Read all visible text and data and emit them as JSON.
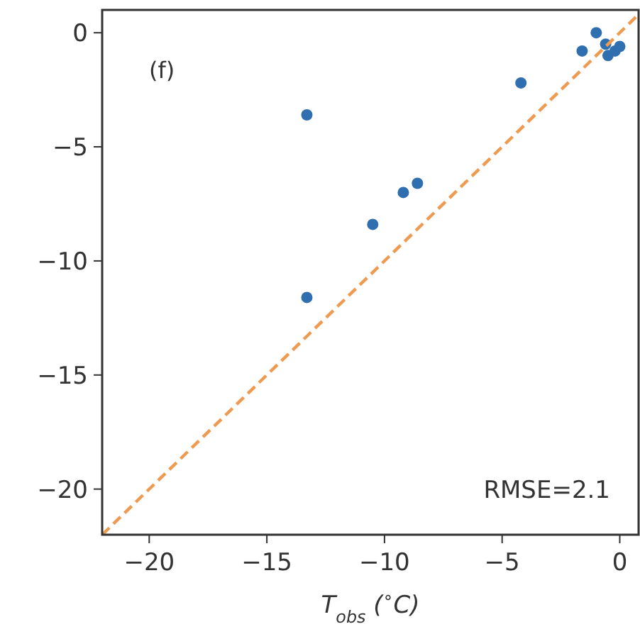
{
  "chart_data": {
    "type": "scatter",
    "xlabel": "T$_{obs}$ ($^{∘}$C)",
    "xlim": [
      -22,
      0.8
    ],
    "ylim": [
      -22,
      1
    ],
    "xticks": [
      {
        "value": -20,
        "label": "−20"
      },
      {
        "value": -15,
        "label": "−15"
      },
      {
        "value": -10,
        "label": "−10"
      },
      {
        "value": -5,
        "label": "−5"
      },
      0
    ],
    "yticks": [
      {
        "value": -20,
        "label": "−20"
      },
      {
        "value": -15,
        "label": "−15"
      },
      {
        "value": -10,
        "label": "−10"
      },
      {
        "value": -5,
        "label": "−5"
      },
      0
    ],
    "grid": false,
    "annotations": [
      "(f)",
      "RMSE=2.1"
    ],
    "series": [
      {
        "marker": "circle",
        "color": "#2f6fb0",
        "x": [
          -13.3,
          -13.3,
          -10.5,
          -9.2,
          -8.6,
          -4.2,
          -1.6,
          -1.0,
          -0.5,
          -0.2,
          0,
          -0.6
        ],
        "values": [
          -3.6,
          -11.6,
          -8.4,
          -7.0,
          -6.6,
          -2.2,
          -0.8,
          0,
          -1.0,
          -0.8,
          -0.6,
          -0.5
        ]
      },
      {
        "type": "line",
        "color": "#ee9a50",
        "line_style": "dashed",
        "marker": "none",
        "x": [
          -22,
          0.8
        ],
        "values": [
          -22,
          0.8
        ]
      }
    ]
  }
}
